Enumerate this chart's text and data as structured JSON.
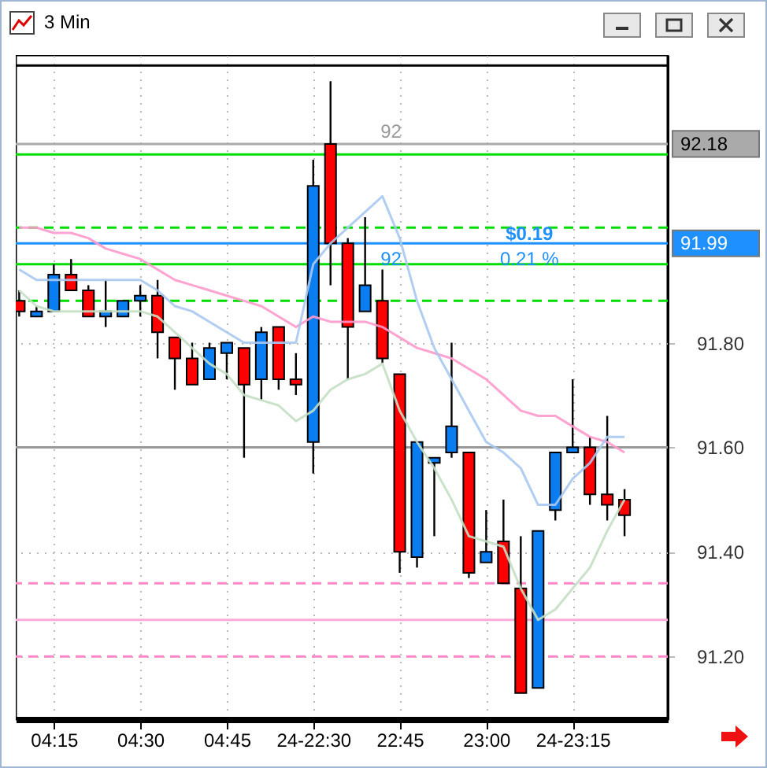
{
  "chart_data": {
    "type": "candlestick",
    "title": "3 Min",
    "categories": [
      null,
      null,
      "04:15",
      null,
      null,
      null,
      null,
      "04:30",
      null,
      null,
      null,
      null,
      "04:45",
      null,
      null,
      null,
      null,
      "24-22:30",
      null,
      null,
      null,
      null,
      "22:45",
      null,
      null,
      null,
      null,
      "23:00",
      null,
      null,
      null,
      null,
      "24-23:15",
      null,
      null,
      null
    ],
    "ohlc": [
      [
        91.88,
        91.9,
        91.85,
        91.86
      ],
      [
        91.85,
        91.87,
        91.85,
        91.86
      ],
      [
        91.86,
        91.95,
        91.86,
        91.93
      ],
      [
        91.93,
        91.96,
        91.9,
        91.9
      ],
      [
        91.9,
        91.91,
        91.85,
        91.85
      ],
      [
        91.85,
        91.92,
        91.83,
        91.86
      ],
      [
        91.85,
        91.88,
        91.85,
        91.88
      ],
      [
        91.88,
        91.91,
        91.85,
        91.89
      ],
      [
        91.89,
        91.92,
        91.77,
        91.82
      ],
      [
        91.81,
        91.81,
        91.71,
        91.77
      ],
      [
        91.77,
        91.8,
        91.72,
        91.72
      ],
      [
        91.73,
        91.8,
        91.73,
        91.79
      ],
      [
        91.78,
        91.8,
        91.73,
        91.8
      ],
      [
        91.79,
        91.79,
        91.58,
        91.72
      ],
      [
        91.73,
        91.83,
        91.69,
        91.82
      ],
      [
        91.83,
        91.83,
        91.71,
        91.73
      ],
      [
        91.73,
        91.78,
        91.7,
        91.72
      ],
      [
        91.61,
        92.15,
        91.55,
        92.1
      ],
      [
        92.18,
        92.3,
        91.91,
        91.99
      ],
      [
        91.99,
        92.0,
        91.73,
        91.83
      ],
      [
        91.86,
        92.04,
        91.86,
        91.91
      ],
      [
        91.88,
        91.94,
        91.76,
        91.77
      ],
      [
        91.74,
        91.74,
        91.36,
        91.4
      ],
      [
        91.39,
        91.61,
        91.37,
        91.61
      ],
      [
        91.57,
        91.58,
        91.43,
        91.58
      ],
      [
        91.59,
        91.8,
        91.58,
        91.64
      ],
      [
        91.59,
        91.59,
        91.35,
        91.36
      ],
      [
        91.38,
        91.48,
        91.38,
        91.4
      ],
      [
        91.42,
        91.5,
        91.34,
        91.34
      ],
      [
        91.33,
        91.43,
        91.13,
        91.13
      ],
      [
        91.14,
        91.44,
        91.14,
        91.44
      ],
      [
        91.48,
        91.59,
        91.46,
        91.59
      ],
      [
        91.59,
        91.73,
        91.59,
        91.6
      ],
      [
        91.6,
        91.62,
        91.49,
        91.51
      ],
      [
        91.51,
        91.66,
        91.46,
        91.49
      ],
      [
        91.5,
        91.52,
        91.43,
        91.47
      ]
    ],
    "colors": [
      "#ff0000",
      "#0a7ef0",
      "#0a7ef0",
      "#ff0000",
      "#ff0000",
      "#0a7ef0",
      "#0a7ef0",
      "#0a7ef0",
      "#ff0000",
      "#ff0000",
      "#ff0000",
      "#0a7ef0",
      "#0a7ef0",
      "#ff0000",
      "#0a7ef0",
      "#ff0000",
      "#ff0000",
      "#0a7ef0",
      "#ff0000",
      "#ff0000",
      "#0a7ef0",
      "#ff0000",
      "#ff0000",
      "#0a7ef0",
      "#0a7ef0",
      "#0a7ef0",
      "#ff0000",
      "#0a7ef0",
      "#ff0000",
      "#ff0000",
      "#0a7ef0",
      "#0a7ef0",
      "#0a7ef0",
      "#ff0000",
      "#ff0000",
      "#ff0000"
    ],
    "series": [
      {
        "type": "line",
        "color": "#ff99cc",
        "values": [
          92.02,
          92.02,
          92.01,
          92.01,
          92.0,
          91.98,
          91.97,
          91.96,
          91.94,
          91.92,
          91.91,
          91.9,
          91.89,
          91.88,
          91.87,
          91.85,
          91.83,
          91.85,
          91.84,
          91.84,
          91.84,
          91.83,
          91.81,
          91.79,
          91.78,
          91.77,
          91.75,
          91.73,
          91.7,
          91.67,
          91.66,
          91.66,
          91.64,
          91.62,
          91.61,
          91.59
        ]
      },
      {
        "type": "line",
        "color": "#a8c8f0",
        "values": [
          91.94,
          91.92,
          91.92,
          91.92,
          91.92,
          91.92,
          91.92,
          91.92,
          91.9,
          91.87,
          91.86,
          91.84,
          91.82,
          91.8,
          91.8,
          91.8,
          91.8,
          91.95,
          91.99,
          92.02,
          92.05,
          92.08,
          92.0,
          91.88,
          91.79,
          91.73,
          91.67,
          91.61,
          91.59,
          91.56,
          91.49,
          91.49,
          91.54,
          91.57,
          91.62,
          91.62
        ]
      },
      {
        "type": "line",
        "color": "#c4dfc4",
        "values": [
          91.9,
          91.87,
          91.86,
          91.86,
          91.86,
          91.86,
          91.86,
          91.86,
          91.85,
          91.82,
          91.79,
          91.76,
          91.74,
          91.7,
          91.69,
          91.68,
          91.65,
          91.67,
          91.71,
          91.73,
          91.74,
          91.76,
          91.67,
          91.61,
          91.56,
          91.5,
          91.43,
          91.42,
          91.41,
          91.33,
          91.27,
          91.29,
          91.33,
          91.37,
          91.44,
          91.5
        ]
      }
    ],
    "ylim": [
      91.08,
      92.35
    ],
    "yticks": [
      {
        "value": 91.2,
        "label": "91.20"
      },
      {
        "value": 91.4,
        "label": "91.40"
      },
      {
        "value": 91.6,
        "label": "91.60"
      },
      {
        "value": 91.8,
        "label": "91.80"
      }
    ],
    "grid": true,
    "legend": false,
    "ref_lines": [
      {
        "axis": "y",
        "value": 92.33,
        "color": "#000000"
      },
      {
        "axis": "y",
        "value": 92.16,
        "color": "#00dd00"
      },
      {
        "axis": "y",
        "value": 92.18,
        "label": "92.18",
        "color": "#aaaaaa"
      },
      {
        "axis": "y",
        "value": 92.02,
        "color": "#00dd00",
        "line_style": "dashed"
      },
      {
        "axis": "y",
        "value": 91.99,
        "label": "91.99",
        "color": "#1e90ff"
      },
      {
        "axis": "y",
        "value": 91.95,
        "color": "#00dd00"
      },
      {
        "axis": "y",
        "value": 91.88,
        "color": "#00dd00",
        "line_style": "dashed"
      },
      {
        "axis": "y",
        "value": 91.6,
        "color": "#999999"
      },
      {
        "axis": "y",
        "value": 91.34,
        "color": "#ff88c8",
        "line_style": "dashed"
      },
      {
        "axis": "y",
        "value": 91.27,
        "color": "#ffaad8"
      },
      {
        "axis": "y",
        "value": 91.2,
        "color": "#ff88c8",
        "line_style": "dashed"
      }
    ],
    "annotations": [
      {
        "text": "92",
        "y": 92.18
      },
      {
        "text": "92",
        "y": 91.99
      },
      {
        "text": "$0.19",
        "y": 91.99
      },
      {
        "text": "0.21 %",
        "y": 91.99
      }
    ]
  }
}
